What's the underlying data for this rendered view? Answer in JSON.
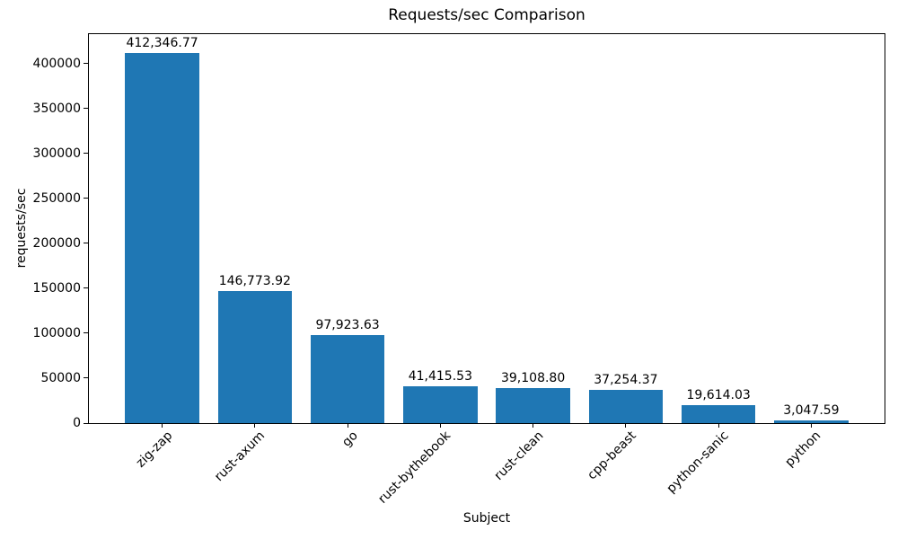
{
  "figure": {
    "background": "#ffffff",
    "text_color": "#000000"
  },
  "chart_data": {
    "type": "bar",
    "title": "Requests/sec Comparison",
    "xlabel": "Subject",
    "ylabel": "requests/sec",
    "categories": [
      "zig-zap",
      "rust-axum",
      "go",
      "rust-bythebook",
      "rust-clean",
      "cpp-beast",
      "python-sanic",
      "python"
    ],
    "values": [
      412346.77,
      146773.92,
      97923.63,
      41415.53,
      39108.8,
      37254.37,
      19614.03,
      3047.59
    ],
    "value_labels": [
      "412,346.77",
      "146,773.92",
      "97,923.63",
      "41,415.53",
      "39,108.80",
      "37,254.37",
      "19,614.03",
      "3,047.59"
    ],
    "bar_color": "#1f77b4",
    "ylim": [
      0,
      432964
    ],
    "yticks": [
      0,
      50000,
      100000,
      150000,
      200000,
      250000,
      300000,
      350000,
      400000
    ],
    "grid": false,
    "legend": null,
    "x_tick_rotation": 45,
    "bar_width_fraction": 0.8,
    "x_margin_units": 0.79
  }
}
